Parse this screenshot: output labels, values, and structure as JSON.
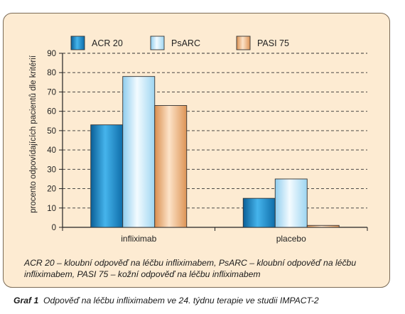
{
  "colors": {
    "panel_bg": "#fdebd2",
    "panel_border": "#7a6a55",
    "acr20": "#1e95d6",
    "psarc": "#bfe7f8",
    "pasi75": "#f1bb87"
  },
  "chart_data": {
    "type": "bar",
    "categories": [
      "infliximab",
      "placebo"
    ],
    "series": [
      {
        "name": "ACR 20",
        "values": [
          53,
          15
        ]
      },
      {
        "name": "PsARC",
        "values": [
          78,
          25
        ]
      },
      {
        "name": "PASI 75",
        "values": [
          63,
          1
        ]
      }
    ],
    "ylabel": "procento odpovídajících pacientů dle kritérií",
    "xlabel": "",
    "ylim": [
      0,
      90
    ],
    "yticks": [
      0,
      10,
      20,
      30,
      40,
      50,
      60,
      70,
      80,
      90
    ],
    "grid": true,
    "legend_position": "top"
  },
  "note": "ACR 20 – kloubní odpověď na léčbu infliximabem, PsARC – kloubní odpověď na léčbu infliximabem, PASI 75 – kožní odpověď na léčbu infliximabem",
  "caption": {
    "label": "Graf 1",
    "text": "Odpověď na léčbu infliximabem ve 24. týdnu terapie ve studii IMPACT-2"
  }
}
